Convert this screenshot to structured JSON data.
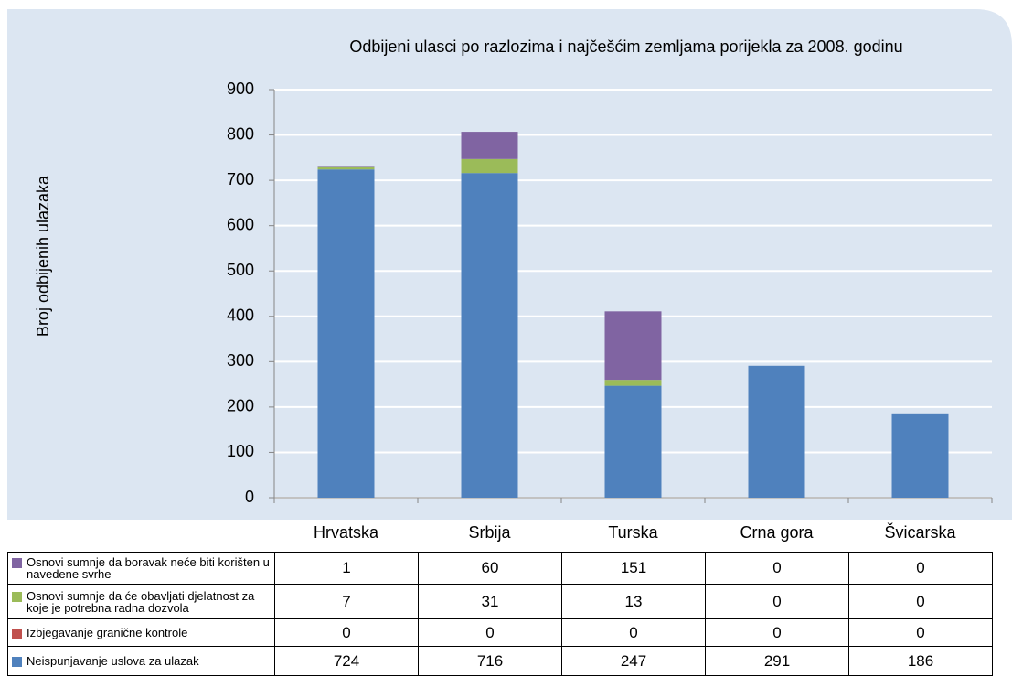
{
  "chart_data": {
    "type": "stacked_bar",
    "title": "Odbijeni ulasci po razlozima i najčešćim zemljama porijekla za 2008. godinu",
    "y_label": "Broj odbijenih ulazaka",
    "categories": [
      "Hrvatska",
      "Srbija",
      "Turska",
      "Crna gora",
      "Švicarska"
    ],
    "series": [
      {
        "name": "Neispunjavanje uslova za ulazak",
        "color": "#4f81bd",
        "values": [
          724,
          716,
          247,
          291,
          186
        ]
      },
      {
        "name": "Izbjegavanje granične kontrole",
        "color": "#c0504d",
        "values": [
          0,
          0,
          0,
          0,
          0
        ]
      },
      {
        "name": "Osnovi sumnje da će obavljati djelatnost za koje je potrebna radna dozvola",
        "color": "#9bbb59",
        "values": [
          7,
          31,
          13,
          0,
          0
        ]
      },
      {
        "name": "Osnovi sumnje da boravak neće biti korišten u navedene svrhe",
        "color": "#8064a2",
        "values": [
          1,
          60,
          151,
          0,
          0
        ]
      }
    ],
    "ylim": [
      0,
      900
    ],
    "yticks": [
      0,
      100,
      200,
      300,
      400,
      500,
      600,
      700,
      800,
      900
    ],
    "grid": true
  }
}
